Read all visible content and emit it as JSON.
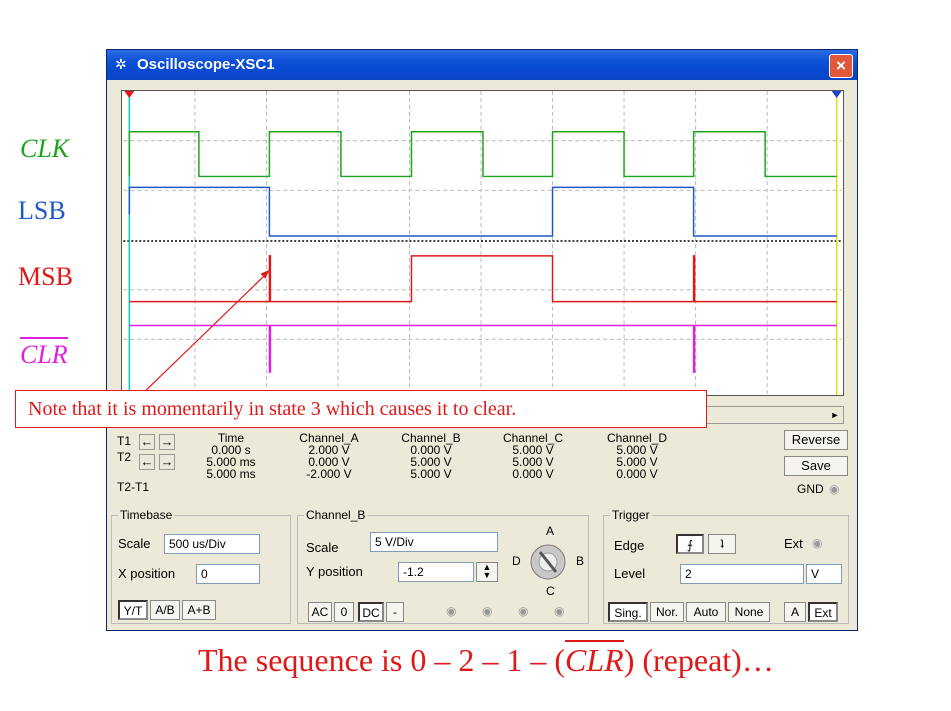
{
  "slide_labels": {
    "clk": "CLK",
    "lsb": "LSB",
    "msb": "MSB",
    "clr": "CLR"
  },
  "window": {
    "title": "Oscilloscope-XSC1",
    "close_glyph": "×",
    "icon": "oscilloscope-icon"
  },
  "readout": {
    "t1": "T1",
    "t2": "T2",
    "t2t1": "T2-T1",
    "headers": [
      "Time",
      "Channel_A",
      "Channel_B",
      "Channel_C",
      "Channel_D"
    ],
    "rows": [
      [
        "0.000 s",
        "2.000 V",
        "0.000 V",
        "5.000 V",
        "5.000 V"
      ],
      [
        "5.000 ms",
        "0.000 V",
        "5.000 V",
        "5.000 V",
        "5.000 V"
      ],
      [
        "5.000 ms",
        "-2.000 V",
        "5.000 V",
        "0.000 V",
        "0.000 V"
      ]
    ],
    "reverse": "Reverse",
    "save": "Save",
    "gnd": "GND"
  },
  "timebase": {
    "legend": "Timebase",
    "scale_label": "Scale",
    "scale_value": "500 us/Div",
    "xpos_label": "X position",
    "xpos_value": "0",
    "modes": [
      "Y/T",
      "A/B",
      "A+B"
    ]
  },
  "channel_b": {
    "legend": "Channel_B",
    "scale_label": "Scale",
    "scale_value": "5 V/Div",
    "ypos_label": "Y position",
    "ypos_value": "-1.2",
    "coupling": [
      "AC",
      "0",
      "DC",
      "-"
    ],
    "knob_labels": [
      "A",
      "B",
      "C",
      "D"
    ]
  },
  "trigger": {
    "legend": "Trigger",
    "edge_label": "Edge",
    "level_label": "Level",
    "level_value": "2",
    "level_unit": "V",
    "ext": "Ext",
    "modes": [
      "Sing.",
      "Nor.",
      "Auto",
      "None"
    ],
    "source": [
      "A",
      "Ext"
    ]
  },
  "note": "Note that it is momentarily in state 3 which causes it to clear.",
  "bottom_text": {
    "before": "The sequence is 0 – 2 – 1 – (",
    "clr": "CLR",
    "after": ") (repeat)…"
  },
  "colors": {
    "clk": "#1aa61a",
    "lsb": "#1f57c8",
    "msb": "#e01818",
    "clr": "#e020e0"
  }
}
